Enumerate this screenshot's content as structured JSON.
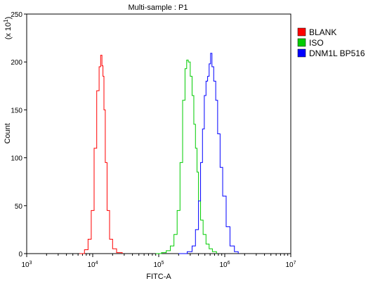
{
  "chart_data": {
    "type": "line",
    "title": "Multi-sample : P1",
    "xlabel": "FITC-A",
    "ylabel": "Count",
    "y_multiplier_label": "(x 10",
    "y_multiplier_exponent": "1",
    "y_multiplier_close": ")",
    "x_scale": "log",
    "xlim": [
      1000,
      10000000
    ],
    "x_ticks": [
      {
        "value": 1000,
        "base": "10",
        "exp": "3"
      },
      {
        "value": 10000,
        "base": "10",
        "exp": "4"
      },
      {
        "value": 100000,
        "base": "10",
        "exp": "5"
      },
      {
        "value": 1000000,
        "base": "10",
        "exp": "6"
      },
      {
        "value": 10000000,
        "base": "10",
        "exp": "7"
      }
    ],
    "ylim": [
      0,
      250
    ],
    "y_ticks": [
      0,
      50,
      100,
      150,
      200,
      250
    ],
    "grid": false,
    "legend_position": "top-right",
    "series": [
      {
        "name": "BLANK",
        "color": "#ff0000",
        "x": [
          6300,
          7500,
          8500,
          9500,
          10500,
          11500,
          12500,
          13200,
          13800,
          14300,
          14800,
          15500,
          16500,
          18000,
          20000,
          23000,
          28000
        ],
        "y": [
          0,
          4,
          15,
          45,
          110,
          170,
          195,
          207,
          196,
          185,
          150,
          95,
          45,
          15,
          5,
          1,
          0
        ]
      },
      {
        "name": "ISO",
        "color": "#00cc00",
        "x": [
          90000,
          110000,
          130000,
          150000,
          170000,
          190000,
          210000,
          230000,
          250000,
          265000,
          280000,
          300000,
          320000,
          340000,
          360000,
          380000,
          400000,
          430000,
          470000,
          520000,
          580000,
          650000,
          750000
        ],
        "y": [
          0,
          1,
          3,
          8,
          20,
          45,
          95,
          160,
          193,
          202,
          200,
          185,
          165,
          135,
          110,
          85,
          55,
          35,
          20,
          10,
          5,
          2,
          0
        ]
      },
      {
        "name": "DNM1L BP516",
        "color": "#0000ff",
        "x": [
          200000,
          270000,
          320000,
          360000,
          400000,
          430000,
          460000,
          490000,
          520000,
          550000,
          580000,
          610000,
          640000,
          680000,
          730000,
          780000,
          850000,
          930000,
          1050000,
          1200000,
          1400000,
          1600000
        ],
        "y": [
          0,
          2,
          8,
          25,
          55,
          95,
          130,
          165,
          180,
          185,
          198,
          209,
          195,
          180,
          160,
          125,
          90,
          60,
          28,
          8,
          2,
          0
        ]
      }
    ]
  }
}
